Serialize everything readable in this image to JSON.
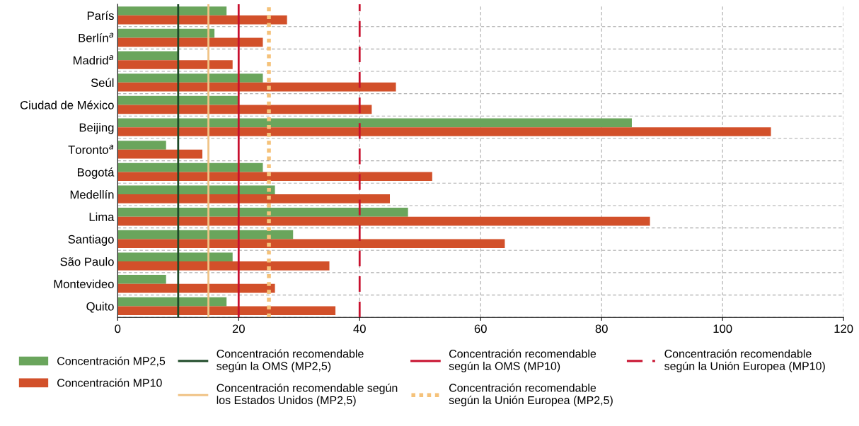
{
  "chart_data": {
    "type": "bar",
    "orientation": "horizontal",
    "categories": [
      "París",
      "Berlín$^{a}$",
      "Madrid$^{a}$",
      "Seúl",
      "Ciudad de México",
      "Beijing",
      "Toronto$^{a}$",
      "Bogotá",
      "Medellín",
      "Lima",
      "Santiago",
      "São Paulo",
      "Montevideo",
      "Quito"
    ],
    "series": [
      {
        "name": "Concentración MP2,5",
        "color": "#6aa55c",
        "values": [
          18,
          16,
          10,
          24,
          20,
          85,
          8,
          24,
          26,
          48,
          29,
          19,
          8,
          18
        ]
      },
      {
        "name": "Concentración MP10",
        "color": "#d2502a",
        "values": [
          28,
          24,
          19,
          46,
          42,
          108,
          14,
          52,
          45,
          88,
          64,
          35,
          26,
          36
        ]
      }
    ],
    "xlim": [
      0,
      120
    ],
    "xticks": [
      0,
      20,
      40,
      60,
      80,
      100,
      120
    ],
    "grid": true,
    "legend": "bottom",
    "ref_lines": [
      {
        "axis": "x",
        "value": 10,
        "label": "Concentración recomendable\nsegún la OMS (MP2,5)",
        "color": "#1e4a28",
        "line_style": "solid"
      },
      {
        "axis": "x",
        "value": 15,
        "label": "Concentración recomendable según\nlos Estados Unidos (MP2,5)",
        "color": "#f0c386",
        "line_style": "solid"
      },
      {
        "axis": "x",
        "value": 20,
        "label": "Concentración recomendable\nsegún la OMS (MP10)",
        "color": "#c8102e",
        "line_style": "solid"
      },
      {
        "axis": "x",
        "value": 25,
        "label": "Concentración recomendable\nsegún la Unión Europea (MP2,5)",
        "color": "#f5c27a",
        "line_style": "dotted"
      },
      {
        "axis": "x",
        "value": 40,
        "label": "Concentración recomendable\nsegún la Unión Europea (MP10)",
        "color": "#c8102e",
        "line_style": "dashed"
      }
    ]
  }
}
